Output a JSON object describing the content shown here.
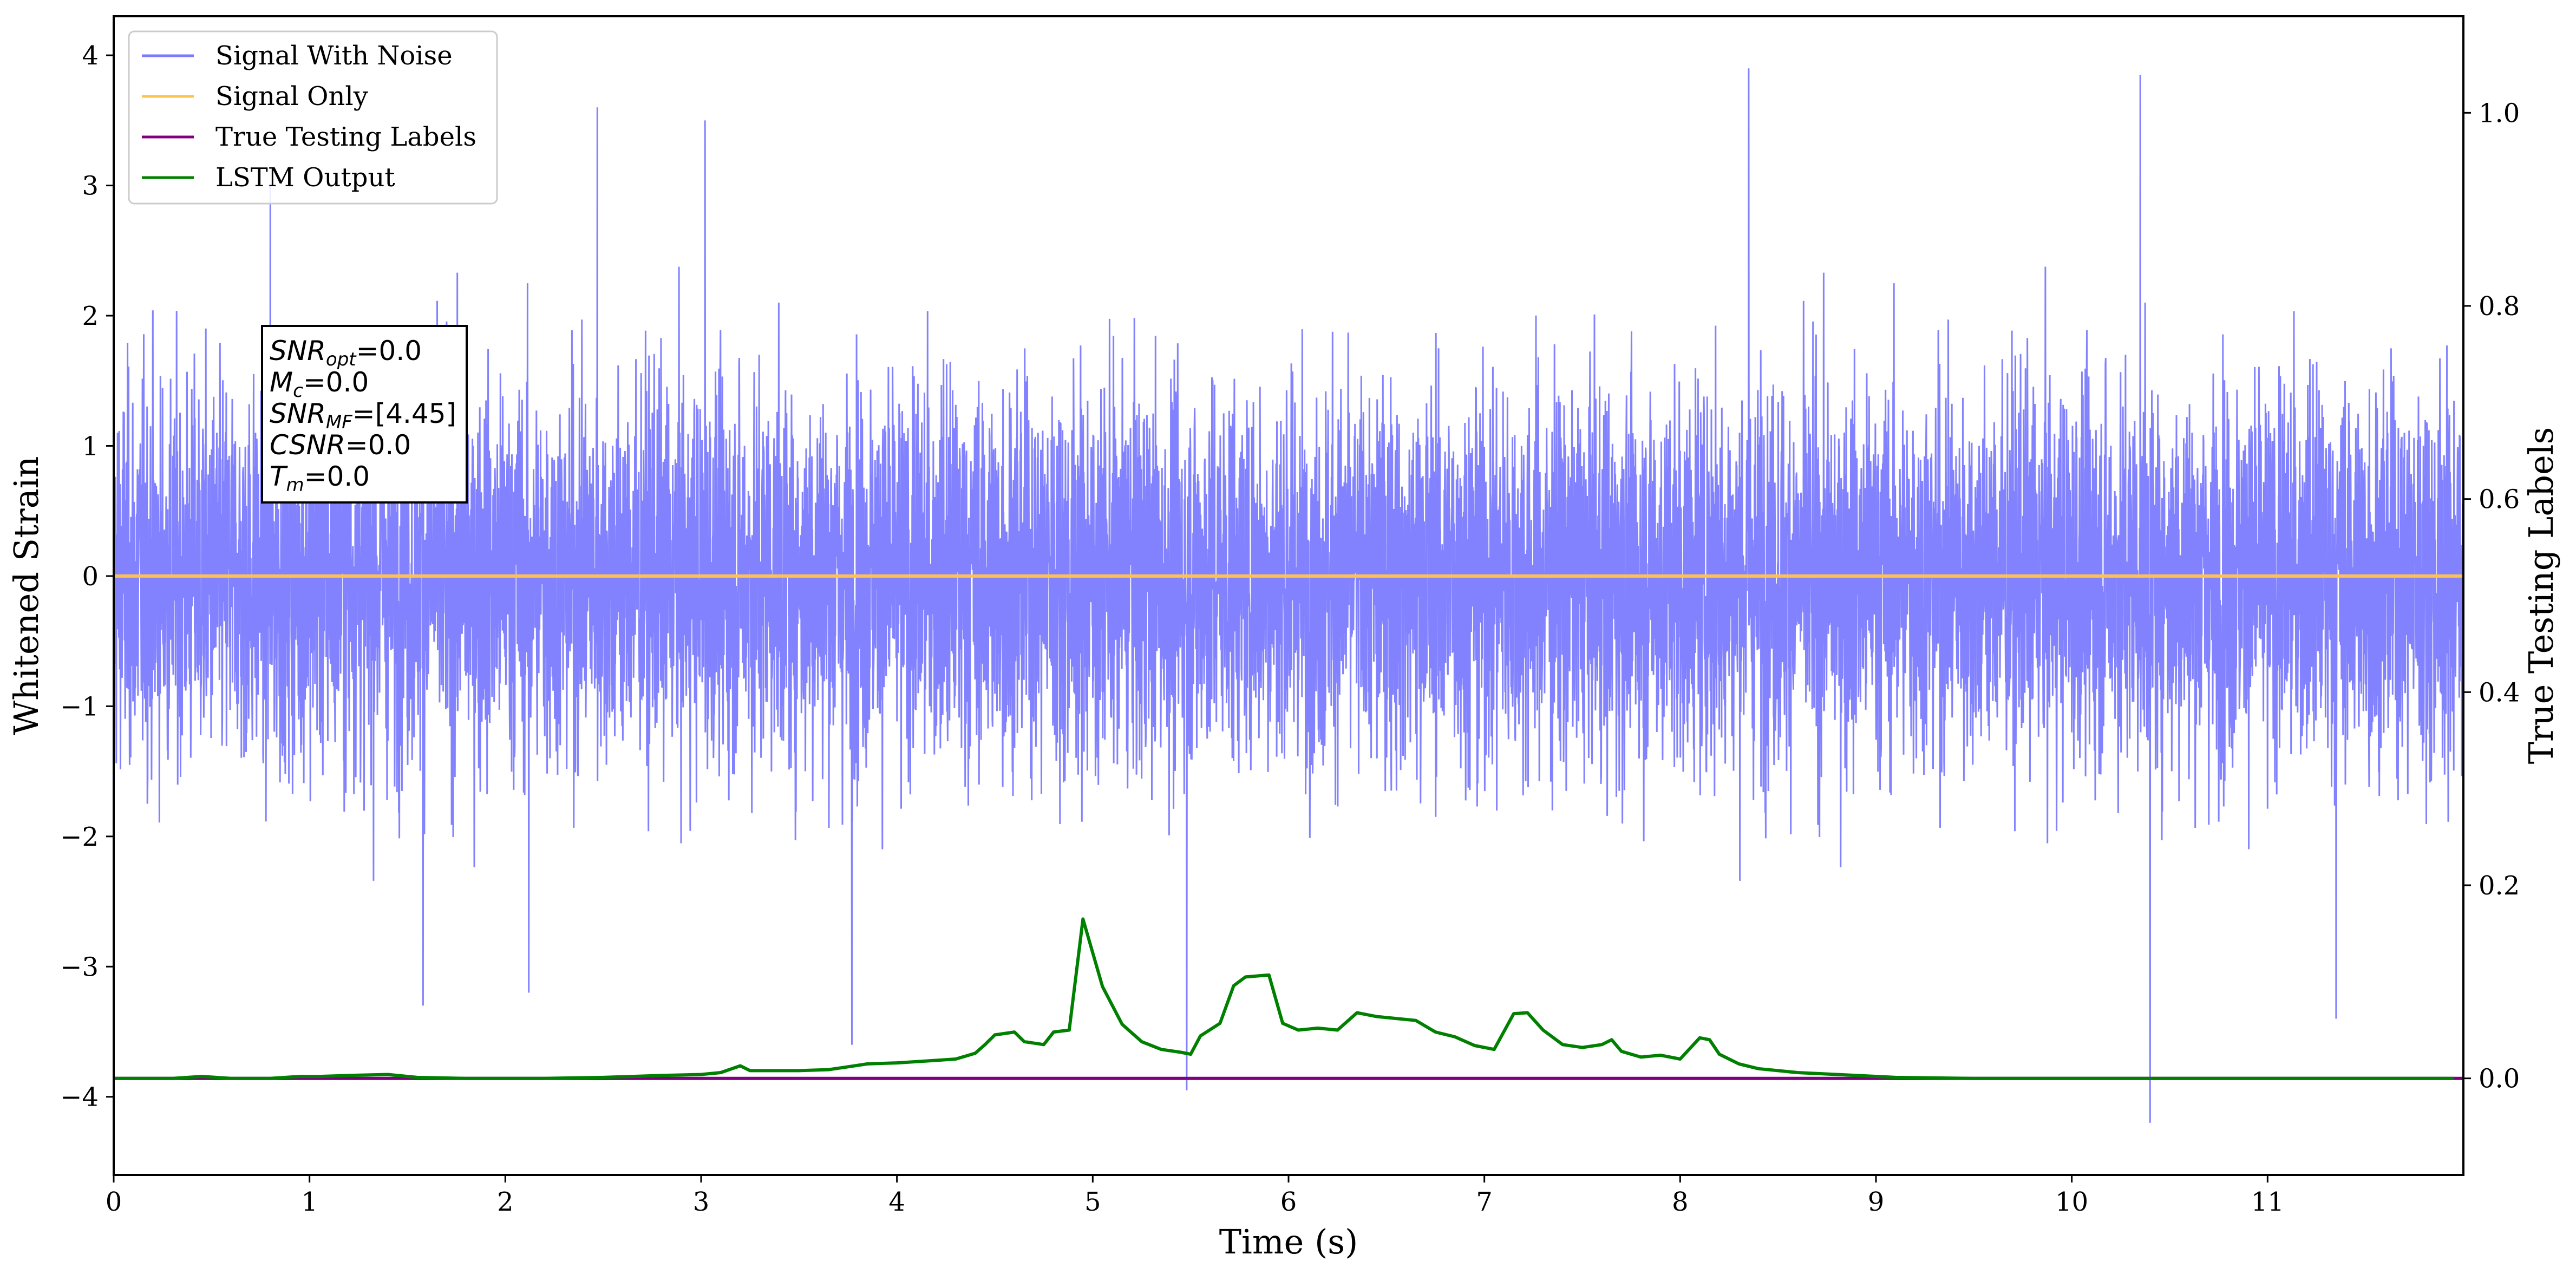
{
  "chart_data": {
    "type": "line",
    "xlabel": "Time (s)",
    "ylabel": "Whitened Strain",
    "y2label": "True Testing Labels",
    "xlim": [
      0,
      12
    ],
    "ylim": [
      -4.6,
      4.3
    ],
    "y2lim": [
      -0.1,
      1.1
    ],
    "xticks": [
      "0",
      "1",
      "2",
      "3",
      "4",
      "5",
      "6",
      "7",
      "8",
      "9",
      "10",
      "11"
    ],
    "yticks": [
      "4",
      "3",
      "2",
      "1",
      "0",
      "−1",
      "−2",
      "−3",
      "−4"
    ],
    "y2ticks": [
      "1.0",
      "0.8",
      "0.6",
      "0.4",
      "0.2",
      "0.0"
    ],
    "grid": false,
    "legend": {
      "placement": "top-left",
      "entries": [
        {
          "label": "Signal With Noise",
          "color": "#7b7bff"
        },
        {
          "label": "Signal Only",
          "color": "#ffc34d"
        },
        {
          "label": "True Testing Labels",
          "color": "#800080"
        },
        {
          "label": "LSTM Output",
          "color": "#008000"
        }
      ]
    },
    "annotation": {
      "lines": [
        {
          "base": "SNR",
          "sub": "opt",
          "value": "=0.0"
        },
        {
          "base": "M",
          "sub": "c",
          "value": "=0.0"
        },
        {
          "base": "SNR",
          "sub": "MF",
          "value": "=[4.45]"
        },
        {
          "base": "CSNR",
          "sub": "",
          "value": "=0.0"
        },
        {
          "base": "T",
          "sub": "m",
          "value": "=0.0"
        }
      ]
    },
    "series": [
      {
        "name": "Signal With Noise",
        "axis": "left",
        "color": "#7b7bff",
        "style": "dense noise, approx. Gaussian, amplitude spanning about -4.2 to 3.9",
        "notable_spikes": [
          [
            0.8,
            3.0
          ],
          [
            2.47,
            3.6
          ],
          [
            3.02,
            3.5
          ],
          [
            8.35,
            3.9
          ],
          [
            10.35,
            3.85
          ],
          [
            10.4,
            -4.2
          ],
          [
            5.48,
            -3.95
          ],
          [
            1.58,
            -3.3
          ],
          [
            2.12,
            -3.2
          ],
          [
            3.77,
            -3.6
          ],
          [
            11.35,
            -3.4
          ]
        ]
      },
      {
        "name": "Signal Only",
        "axis": "left",
        "color": "#ffc34d",
        "x": [
          0,
          12
        ],
        "y": [
          0,
          0
        ]
      },
      {
        "name": "True Testing Labels",
        "axis": "right",
        "color": "#800080",
        "x": [
          0,
          12
        ],
        "y": [
          0,
          0
        ]
      },
      {
        "name": "LSTM Output",
        "axis": "right",
        "color": "#008000",
        "x": [
          0.0,
          0.3,
          0.45,
          0.6,
          0.8,
          0.95,
          1.05,
          1.2,
          1.4,
          1.55,
          1.8,
          2.0,
          2.2,
          2.5,
          2.8,
          3.0,
          3.1,
          3.2,
          3.25,
          3.35,
          3.5,
          3.65,
          3.75,
          3.85,
          4.0,
          4.15,
          4.3,
          4.4,
          4.45,
          4.5,
          4.6,
          4.65,
          4.75,
          4.8,
          4.88,
          4.95,
          5.05,
          5.15,
          5.25,
          5.35,
          5.45,
          5.5,
          5.55,
          5.65,
          5.72,
          5.78,
          5.9,
          5.97,
          6.05,
          6.15,
          6.25,
          6.35,
          6.45,
          6.55,
          6.65,
          6.75,
          6.85,
          6.95,
          7.05,
          7.15,
          7.22,
          7.3,
          7.4,
          7.5,
          7.6,
          7.65,
          7.7,
          7.8,
          7.9,
          8.0,
          8.1,
          8.15,
          8.2,
          8.3,
          8.4,
          8.6,
          8.9,
          9.1,
          9.5,
          10.0,
          10.5,
          11.0,
          11.5,
          11.95
        ],
        "y": [
          0.0,
          0.0,
          0.002,
          0.0,
          0.0,
          0.002,
          0.002,
          0.003,
          0.004,
          0.001,
          0.0,
          0.0,
          0.0,
          0.001,
          0.003,
          0.004,
          0.006,
          0.013,
          0.008,
          0.008,
          0.008,
          0.009,
          0.012,
          0.015,
          0.016,
          0.018,
          0.02,
          0.026,
          0.035,
          0.045,
          0.048,
          0.038,
          0.035,
          0.048,
          0.05,
          0.165,
          0.095,
          0.056,
          0.038,
          0.03,
          0.027,
          0.025,
          0.044,
          0.057,
          0.096,
          0.105,
          0.107,
          0.057,
          0.05,
          0.052,
          0.05,
          0.068,
          0.064,
          0.062,
          0.06,
          0.048,
          0.043,
          0.034,
          0.03,
          0.067,
          0.068,
          0.05,
          0.035,
          0.032,
          0.035,
          0.04,
          0.028,
          0.022,
          0.024,
          0.02,
          0.042,
          0.04,
          0.025,
          0.015,
          0.01,
          0.006,
          0.003,
          0.001,
          0.0,
          0.0,
          0.0,
          0.0,
          0.0,
          0.0
        ]
      }
    ]
  }
}
